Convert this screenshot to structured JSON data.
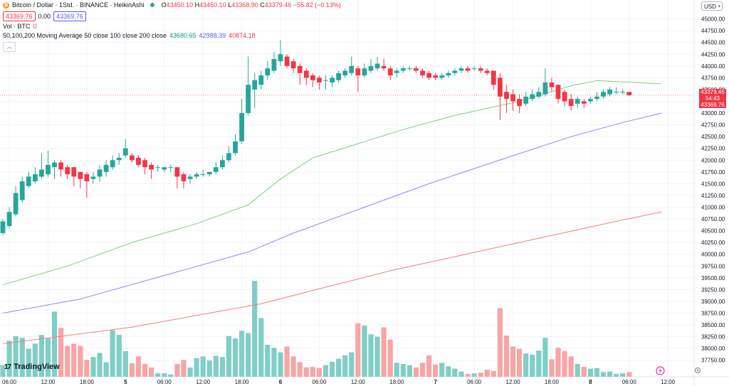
{
  "header": {
    "symbol_title": "Bitcoin / Dollar · 1Std. · BINANCE · HeikinAshi",
    "open_label": "O",
    "open": "43450.10",
    "high_label": "H",
    "high": "43450.10",
    "low_label": "L",
    "low": "43368.90",
    "close_label": "C",
    "close": "43379.46",
    "change": "−55.82 (−0.13%)",
    "bid": "43369.76",
    "spread": "0.00",
    "ask": "43369.76"
  },
  "volume_indicator": {
    "label": "Vol · BTC",
    "value": "0"
  },
  "ma_indicator": {
    "label": "50,100,200 Moving Average 50 close 100 close 200 close",
    "ma50": "43680.65",
    "ma100": "42988.39",
    "ma200": "40874.18"
  },
  "currency": "USD",
  "brand": "TradingView",
  "last_price": {
    "price": "43379.46",
    "countdown": "54:43",
    "bid": "43369.76"
  },
  "colors": {
    "up": "#26a69a",
    "down": "#f23645",
    "vol_up": "#80cec6",
    "vol_down": "#f7a5a5",
    "ma50": "#7bcf7d",
    "ma100": "#8a8af0",
    "ma200": "#f47d7d"
  },
  "chart_data": {
    "type": "candlestick",
    "interval": "1 hour",
    "y_ticks": [
      45000,
      44750,
      44500,
      44250,
      44000,
      43750,
      43500,
      43250,
      43000,
      42750,
      42500,
      42250,
      42000,
      41750,
      41500,
      41250,
      41000,
      40750,
      40500,
      40250,
      40000,
      39750,
      39500,
      39250,
      39000,
      38750,
      38500,
      38250,
      38000,
      37750
    ],
    "x_ticks": [
      {
        "label": "06:00",
        "i": 1
      },
      {
        "label": "12:00",
        "i": 7
      },
      {
        "label": "18:00",
        "i": 13
      },
      {
        "label": "5",
        "i": 19
      },
      {
        "label": "06:00",
        "i": 25
      },
      {
        "label": "12:00",
        "i": 31
      },
      {
        "label": "18:00",
        "i": 37
      },
      {
        "label": "6",
        "i": 43
      },
      {
        "label": "06:00",
        "i": 49
      },
      {
        "label": "12:00",
        "i": 55
      },
      {
        "label": "18:00",
        "i": 61
      },
      {
        "label": "7",
        "i": 67
      },
      {
        "label": "06:00",
        "i": 73
      },
      {
        "label": "12:00",
        "i": 79
      },
      {
        "label": "18:00",
        "i": 85
      },
      {
        "label": "8",
        "i": 91
      },
      {
        "label": "06:00",
        "i": 97
      },
      {
        "label": "12:00",
        "i": 103
      }
    ],
    "candles": [
      {
        "o": 40450,
        "c": 40700,
        "h": 40750,
        "l": 40400,
        "v": 20
      },
      {
        "o": 40600,
        "c": 40900,
        "h": 41000,
        "l": 40550,
        "v": 62
      },
      {
        "o": 40850,
        "c": 41300,
        "h": 41450,
        "l": 40800,
        "v": 70
      },
      {
        "o": 41150,
        "c": 41550,
        "h": 41650,
        "l": 41100,
        "v": 67
      },
      {
        "o": 41450,
        "c": 41650,
        "h": 41750,
        "l": 41400,
        "v": 48
      },
      {
        "o": 41550,
        "c": 41700,
        "h": 41850,
        "l": 41500,
        "v": 57
      },
      {
        "o": 41650,
        "c": 41800,
        "h": 42150,
        "l": 41600,
        "v": 72
      },
      {
        "o": 41700,
        "c": 41900,
        "h": 42200,
        "l": 41650,
        "v": 66
      },
      {
        "o": 41850,
        "c": 41950,
        "h": 42000,
        "l": 41600,
        "v": 112
      },
      {
        "o": 41950,
        "c": 41800,
        "h": 42000,
        "l": 41650,
        "v": 84
      },
      {
        "o": 41850,
        "c": 41700,
        "h": 41900,
        "l": 41600,
        "v": 53
      },
      {
        "o": 41850,
        "c": 41650,
        "h": 41850,
        "l": 41450,
        "v": 57
      },
      {
        "o": 41750,
        "c": 41600,
        "h": 41750,
        "l": 41400,
        "v": 53
      },
      {
        "o": 41700,
        "c": 41550,
        "h": 41750,
        "l": 41200,
        "v": 29
      },
      {
        "o": 41600,
        "c": 41650,
        "h": 41750,
        "l": 41500,
        "v": 34
      },
      {
        "o": 41650,
        "c": 41800,
        "h": 41900,
        "l": 41550,
        "v": 41
      },
      {
        "o": 41750,
        "c": 41900,
        "h": 42000,
        "l": 41650,
        "v": 25
      },
      {
        "o": 41850,
        "c": 42000,
        "h": 42100,
        "l": 41800,
        "v": 80
      },
      {
        "o": 42000,
        "c": 42050,
        "h": 42150,
        "l": 41900,
        "v": 72
      },
      {
        "o": 42100,
        "c": 42250,
        "h": 42450,
        "l": 42050,
        "v": 44
      },
      {
        "o": 42100,
        "c": 42000,
        "h": 42150,
        "l": 41950,
        "v": 23
      },
      {
        "o": 42050,
        "c": 41900,
        "h": 42100,
        "l": 41850,
        "v": 35
      },
      {
        "o": 42000,
        "c": 41850,
        "h": 42050,
        "l": 41700,
        "v": 22
      },
      {
        "o": 41900,
        "c": 41800,
        "h": 41950,
        "l": 41600,
        "v": 16
      },
      {
        "o": 41850,
        "c": 41850,
        "h": 41900,
        "l": 41750,
        "v": 6
      },
      {
        "o": 41800,
        "c": 41850,
        "h": 41850,
        "l": 41750,
        "v": 6
      },
      {
        "o": 41850,
        "c": 41850,
        "h": 41900,
        "l": 41750,
        "v": 4
      },
      {
        "o": 41850,
        "c": 41650,
        "h": 41850,
        "l": 41400,
        "v": 22
      },
      {
        "o": 41700,
        "c": 41550,
        "h": 41750,
        "l": 41400,
        "v": 29
      },
      {
        "o": 41600,
        "c": 41650,
        "h": 41700,
        "l": 41500,
        "v": 16
      },
      {
        "o": 41650,
        "c": 41700,
        "h": 41750,
        "l": 41600,
        "v": 32
      },
      {
        "o": 41700,
        "c": 41700,
        "h": 41800,
        "l": 41650,
        "v": 35
      },
      {
        "o": 41700,
        "c": 41750,
        "h": 41750,
        "l": 41650,
        "v": 28
      },
      {
        "o": 41750,
        "c": 41850,
        "h": 41950,
        "l": 41700,
        "v": 36
      },
      {
        "o": 41850,
        "c": 42000,
        "h": 42100,
        "l": 41800,
        "v": 34
      },
      {
        "o": 42000,
        "c": 42150,
        "h": 42300,
        "l": 41950,
        "v": 70
      },
      {
        "o": 42150,
        "c": 42400,
        "h": 42550,
        "l": 42100,
        "v": 66
      },
      {
        "o": 42400,
        "c": 43000,
        "h": 43300,
        "l": 42350,
        "v": 79
      },
      {
        "o": 43000,
        "c": 43600,
        "h": 44200,
        "l": 42950,
        "v": 75
      },
      {
        "o": 43500,
        "c": 43700,
        "h": 43850,
        "l": 43100,
        "v": 165
      },
      {
        "o": 43600,
        "c": 43800,
        "h": 43900,
        "l": 43500,
        "v": 101
      },
      {
        "o": 43800,
        "c": 43950,
        "h": 44100,
        "l": 43700,
        "v": 55
      },
      {
        "o": 43900,
        "c": 44150,
        "h": 44300,
        "l": 43850,
        "v": 50
      },
      {
        "o": 44100,
        "c": 44250,
        "h": 44550,
        "l": 44000,
        "v": 42
      },
      {
        "o": 44200,
        "c": 44000,
        "h": 44250,
        "l": 43950,
        "v": 52
      },
      {
        "o": 44100,
        "c": 43950,
        "h": 44150,
        "l": 43850,
        "v": 35
      },
      {
        "o": 44000,
        "c": 43850,
        "h": 44050,
        "l": 43600,
        "v": 25
      },
      {
        "o": 43900,
        "c": 43750,
        "h": 43950,
        "l": 43600,
        "v": 16
      },
      {
        "o": 43800,
        "c": 43700,
        "h": 43850,
        "l": 43550,
        "v": 17
      },
      {
        "o": 43750,
        "c": 43650,
        "h": 43800,
        "l": 43500,
        "v": 15
      },
      {
        "o": 43700,
        "c": 43700,
        "h": 43800,
        "l": 43500,
        "v": 20
      },
      {
        "o": 43650,
        "c": 43750,
        "h": 43800,
        "l": 43550,
        "v": 26
      },
      {
        "o": 43700,
        "c": 43850,
        "h": 43900,
        "l": 43650,
        "v": 31
      },
      {
        "o": 43800,
        "c": 43900,
        "h": 43950,
        "l": 43750,
        "v": 37
      },
      {
        "o": 43850,
        "c": 44000,
        "h": 44200,
        "l": 43800,
        "v": 42
      },
      {
        "o": 43950,
        "c": 43800,
        "h": 44000,
        "l": 43450,
        "v": 92
      },
      {
        "o": 43800,
        "c": 43950,
        "h": 44050,
        "l": 43750,
        "v": 88
      },
      {
        "o": 43900,
        "c": 44000,
        "h": 44150,
        "l": 43850,
        "v": 73
      },
      {
        "o": 43950,
        "c": 44050,
        "h": 44200,
        "l": 43900,
        "v": 69
      },
      {
        "o": 44000,
        "c": 43950,
        "h": 44150,
        "l": 43900,
        "v": 85
      },
      {
        "o": 43950,
        "c": 43800,
        "h": 44000,
        "l": 43700,
        "v": 64
      },
      {
        "o": 43850,
        "c": 43900,
        "h": 43950,
        "l": 43750,
        "v": 24
      },
      {
        "o": 43900,
        "c": 43950,
        "h": 44000,
        "l": 43850,
        "v": 22
      },
      {
        "o": 43950,
        "c": 43950,
        "h": 44000,
        "l": 43900,
        "v": 20
      },
      {
        "o": 43950,
        "c": 43900,
        "h": 44000,
        "l": 43850,
        "v": 16
      },
      {
        "o": 43900,
        "c": 43800,
        "h": 43950,
        "l": 43750,
        "v": 24
      },
      {
        "o": 43850,
        "c": 43750,
        "h": 43900,
        "l": 43700,
        "v": 37
      },
      {
        "o": 43800,
        "c": 43750,
        "h": 43850,
        "l": 43700,
        "v": 21
      },
      {
        "o": 43750,
        "c": 43800,
        "h": 43850,
        "l": 43700,
        "v": 24
      },
      {
        "o": 43800,
        "c": 43850,
        "h": 43900,
        "l": 43750,
        "v": 18
      },
      {
        "o": 43850,
        "c": 43900,
        "h": 43950,
        "l": 43800,
        "v": 14
      },
      {
        "o": 43900,
        "c": 43950,
        "h": 44000,
        "l": 43850,
        "v": 9
      },
      {
        "o": 43950,
        "c": 43900,
        "h": 44000,
        "l": 43850,
        "v": 5
      },
      {
        "o": 43950,
        "c": 43950,
        "h": 44000,
        "l": 43900,
        "v": 6
      },
      {
        "o": 43950,
        "c": 43900,
        "h": 44000,
        "l": 43850,
        "v": 7
      },
      {
        "o": 43900,
        "c": 43850,
        "h": 43950,
        "l": 43800,
        "v": 12
      },
      {
        "o": 43900,
        "c": 43600,
        "h": 43900,
        "l": 43500,
        "v": 10
      },
      {
        "o": 43750,
        "c": 43350,
        "h": 43850,
        "l": 42850,
        "v": 118
      },
      {
        "o": 43450,
        "c": 43300,
        "h": 43600,
        "l": 43000,
        "v": 71
      },
      {
        "o": 43400,
        "c": 43250,
        "h": 43500,
        "l": 43050,
        "v": 52
      },
      {
        "o": 43300,
        "c": 43150,
        "h": 43400,
        "l": 43000,
        "v": 48
      },
      {
        "o": 43200,
        "c": 43350,
        "h": 43450,
        "l": 43150,
        "v": 40
      },
      {
        "o": 43300,
        "c": 43400,
        "h": 43500,
        "l": 43250,
        "v": 38
      },
      {
        "o": 43350,
        "c": 43450,
        "h": 43550,
        "l": 43300,
        "v": 45
      },
      {
        "o": 43400,
        "c": 43650,
        "h": 43950,
        "l": 43350,
        "v": 67
      },
      {
        "o": 43650,
        "c": 43550,
        "h": 43750,
        "l": 43450,
        "v": 30
      },
      {
        "o": 43600,
        "c": 43300,
        "h": 43600,
        "l": 43200,
        "v": 50
      },
      {
        "o": 43450,
        "c": 43250,
        "h": 43500,
        "l": 43150,
        "v": 44
      },
      {
        "o": 43300,
        "c": 43150,
        "h": 43400,
        "l": 43050,
        "v": 35
      },
      {
        "o": 43200,
        "c": 43300,
        "h": 43350,
        "l": 43100,
        "v": 22
      },
      {
        "o": 43250,
        "c": 43200,
        "h": 43300,
        "l": 43100,
        "v": 17
      },
      {
        "o": 43250,
        "c": 43300,
        "h": 43350,
        "l": 43200,
        "v": 14
      },
      {
        "o": 43300,
        "c": 43350,
        "h": 43450,
        "l": 43250,
        "v": 15
      },
      {
        "o": 43350,
        "c": 43450,
        "h": 43500,
        "l": 43300,
        "v": 8
      },
      {
        "o": 43400,
        "c": 43500,
        "h": 43550,
        "l": 43350,
        "v": 9
      },
      {
        "o": 43450,
        "c": 43450,
        "h": 43550,
        "l": 43400,
        "v": 5
      },
      {
        "o": 43450,
        "c": 43450,
        "h": 43500,
        "l": 43400,
        "v": 6
      },
      {
        "o": 43450,
        "c": 43379,
        "h": 43450,
        "l": 43369,
        "v": 8
      }
    ],
    "ma50": [
      [
        0,
        39350
      ],
      [
        10,
        39750
      ],
      [
        20,
        40250
      ],
      [
        30,
        40650
      ],
      [
        38,
        41050
      ],
      [
        43,
        41600
      ],
      [
        48,
        42050
      ],
      [
        55,
        42350
      ],
      [
        62,
        42650
      ],
      [
        70,
        42950
      ],
      [
        80,
        43250
      ],
      [
        88,
        43580
      ],
      [
        92,
        43690
      ],
      [
        98,
        43650
      ],
      [
        102,
        43620
      ]
    ],
    "ma100": [
      [
        0,
        38750
      ],
      [
        12,
        39050
      ],
      [
        25,
        39550
      ],
      [
        38,
        40050
      ],
      [
        45,
        40450
      ],
      [
        55,
        40950
      ],
      [
        66,
        41500
      ],
      [
        78,
        42050
      ],
      [
        88,
        42500
      ],
      [
        96,
        42800
      ],
      [
        102,
        43000
      ]
    ],
    "ma200": [
      [
        0,
        38100
      ],
      [
        20,
        38450
      ],
      [
        40,
        38950
      ],
      [
        60,
        39650
      ],
      [
        80,
        40250
      ],
      [
        95,
        40700
      ],
      [
        102,
        40900
      ]
    ],
    "ylim": [
      37700,
      45100
    ]
  }
}
